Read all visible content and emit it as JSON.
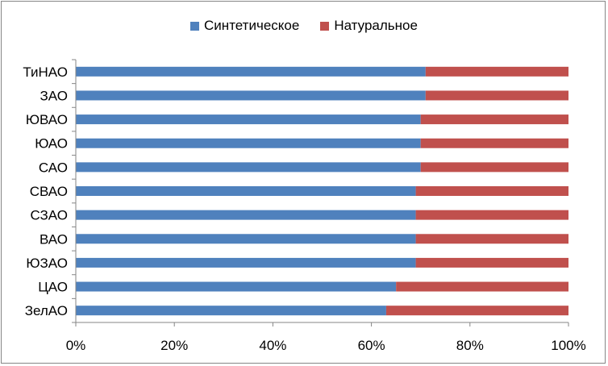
{
  "chart_data": {
    "type": "bar",
    "orientation": "horizontal",
    "stacked": true,
    "percent": true,
    "title": "",
    "xlabel": "",
    "ylabel": "",
    "xlim": [
      0,
      100
    ],
    "x_ticks": [
      "0%",
      "20%",
      "40%",
      "60%",
      "80%",
      "100%"
    ],
    "categories": [
      "ТиНАО",
      "ЗАО",
      "ЮВАО",
      "ЮАО",
      "САО",
      "СВАО",
      "СЗАО",
      "ВАО",
      "ЮЗАО",
      "ЦАО",
      "ЗелАО"
    ],
    "series": [
      {
        "name": "Синтетическое",
        "color": "#4f81bd",
        "values": [
          71,
          71,
          70,
          70,
          70,
          69,
          69,
          69,
          69,
          65,
          63
        ]
      },
      {
        "name": "Натуральное",
        "color": "#c0504d",
        "values": [
          29,
          29,
          30,
          30,
          30,
          31,
          31,
          31,
          31,
          35,
          37
        ]
      }
    ],
    "legend_position": "top",
    "grid": false
  }
}
